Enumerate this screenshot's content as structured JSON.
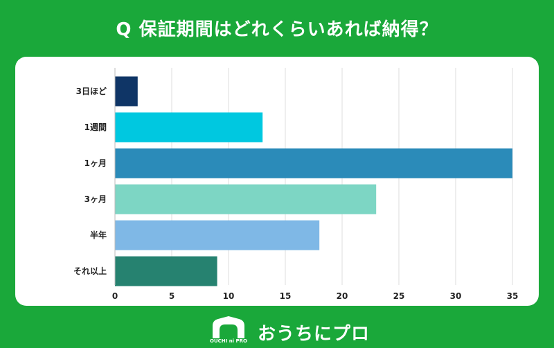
{
  "title": "Q 保証期間はどれくらいあれば納得？",
  "brand": {
    "name": "おうちにプロ",
    "logo_text": "OUCHI ni PRO",
    "logo_icon": "house-icon"
  },
  "colors": {
    "background": "#1aa83a",
    "card": "#ffffff",
    "grid": "#dddddd"
  },
  "chart_data": {
    "type": "bar",
    "orientation": "horizontal",
    "categories": [
      "3日ほど",
      "1週間",
      "1ヶ月",
      "3ヶ月",
      "半年",
      "それ以上"
    ],
    "values": [
      2,
      13,
      35,
      23,
      18,
      9
    ],
    "colors": [
      "#0f3566",
      "#00c8e0",
      "#2b8bb9",
      "#7dd6c4",
      "#7fb8e6",
      "#268270"
    ],
    "xlim": [
      0,
      35
    ],
    "xticks": [
      0,
      5,
      10,
      15,
      20,
      25,
      30,
      35
    ],
    "grid": true,
    "xlabel": "",
    "ylabel": ""
  }
}
